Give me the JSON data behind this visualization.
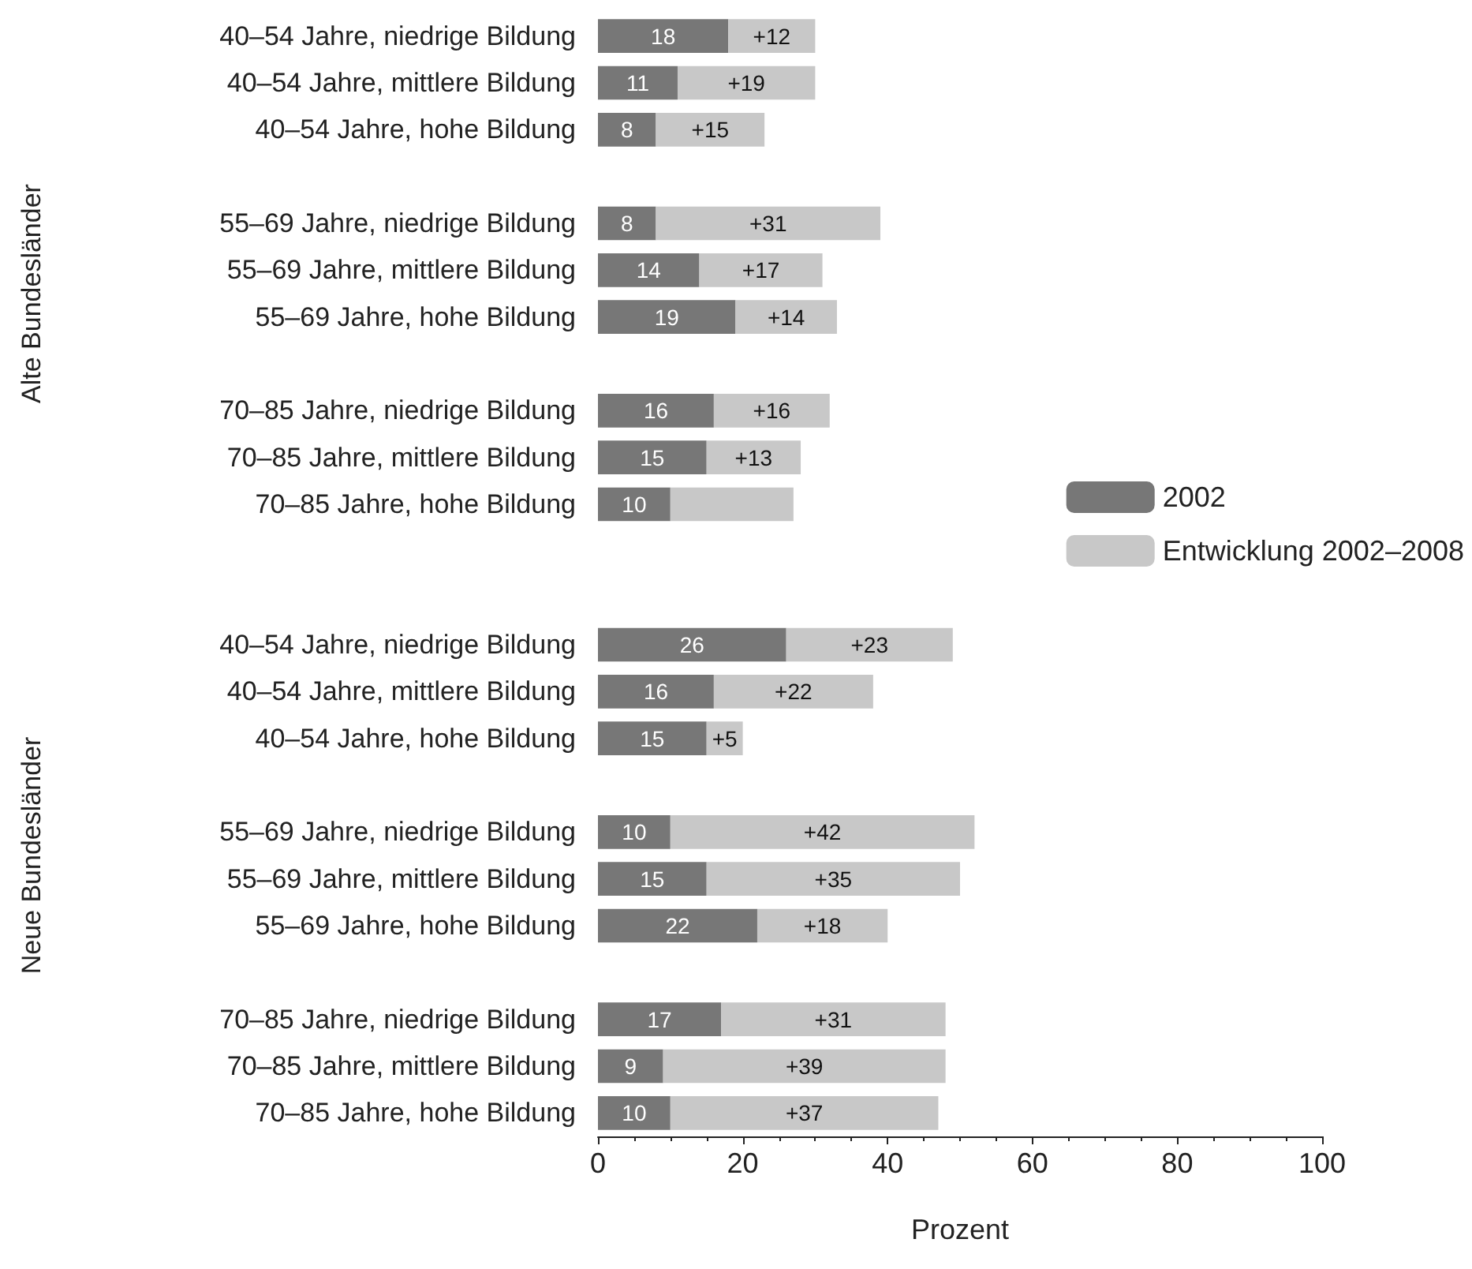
{
  "chart_data": {
    "type": "bar",
    "orientation": "horizontal",
    "stacked": true,
    "xlabel": "Prozent",
    "categories": [
      "40–54 Jahre, niedrige Bildung",
      "40–54 Jahre, mittlere Bildung",
      "40–54 Jahre, hohe Bildung",
      null,
      "55–69 Jahre, niedrige Bildung",
      "55–69 Jahre, mittlere Bildung",
      "55–69 Jahre, hohe Bildung",
      null,
      "70–85 Jahre, niedrige Bildung",
      "70–85 Jahre, mittlere Bildung",
      "70–85 Jahre, hohe Bildung",
      null,
      null,
      "40–54 Jahre, niedrige Bildung",
      "40–54 Jahre, mittlere Bildung",
      "40–54 Jahre, hohe Bildung",
      null,
      "55–69 Jahre, niedrige Bildung",
      "55–69 Jahre, mittlere Bildung",
      "55–69 Jahre, hohe Bildung",
      null,
      "70–85 Jahre, niedrige Bildung",
      "70–85 Jahre, mittlere Bildung",
      "70–85 Jahre, hohe Bildung"
    ],
    "series": [
      {
        "name": "2002",
        "color": "#777777",
        "values": [
          18,
          11,
          8,
          null,
          8,
          14,
          19,
          null,
          16,
          15,
          10,
          null,
          null,
          26,
          16,
          15,
          null,
          10,
          15,
          22,
          null,
          17,
          9,
          10
        ],
        "value_labels": [
          "18",
          "11",
          "8",
          null,
          "8",
          "14",
          "19",
          null,
          "16",
          "15",
          "10",
          null,
          null,
          "26",
          "16",
          "15",
          null,
          "10",
          "15",
          "22",
          null,
          "17",
          "9",
          "10"
        ]
      },
      {
        "name": "Entwicklung 2002–2008",
        "color": "#c8c8c8",
        "values": [
          12,
          19,
          15,
          null,
          31,
          17,
          14,
          null,
          16,
          13,
          17,
          null,
          null,
          23,
          22,
          5,
          null,
          42,
          35,
          18,
          null,
          31,
          39,
          37
        ],
        "value_labels": [
          "+12",
          "+19",
          "+15",
          null,
          "+31",
          "+17",
          "+14",
          null,
          "+16",
          "+13",
          null,
          null,
          null,
          "+23",
          "+22",
          "+5",
          null,
          "+42",
          "+35",
          "+18",
          null,
          "+31",
          "+39",
          "+37"
        ]
      }
    ],
    "xlim": [
      0,
      100
    ],
    "xticks": [
      0,
      20,
      40,
      60,
      80,
      100
    ],
    "annotations": [
      "Alte Bundesländer",
      "Neue Bundesländer"
    ],
    "legend": "right",
    "grid": false
  }
}
